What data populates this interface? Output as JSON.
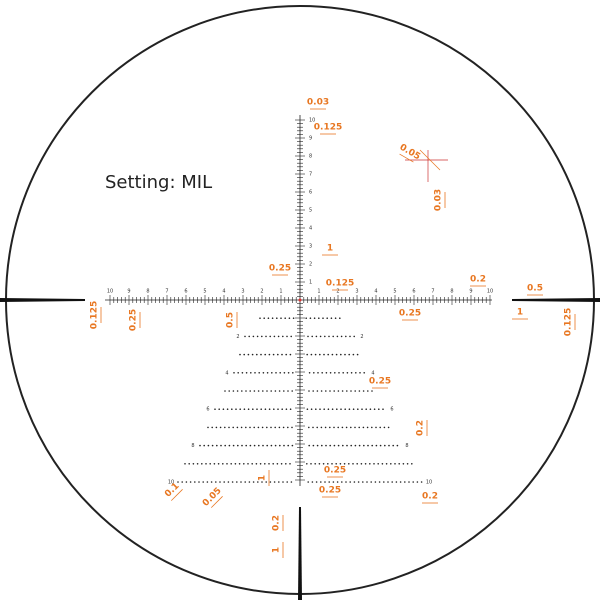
{
  "setting": "Setting: MIL",
  "scale_labels": [
    "1",
    "2",
    "3",
    "4",
    "5",
    "6",
    "7",
    "8",
    "9",
    "10"
  ],
  "dimension_labels": [
    "0.03",
    "0.125",
    "0.05",
    "0.03",
    "1",
    "0.25",
    "0.125",
    "0.2",
    "0.5",
    "0.125",
    "0.25",
    "0.5",
    "0.25",
    "1",
    "0.125",
    "0.25",
    "0.2",
    "0.25",
    "0.1",
    "0.05",
    "1",
    "0.25",
    "0.2",
    "0.2",
    "1"
  ]
}
